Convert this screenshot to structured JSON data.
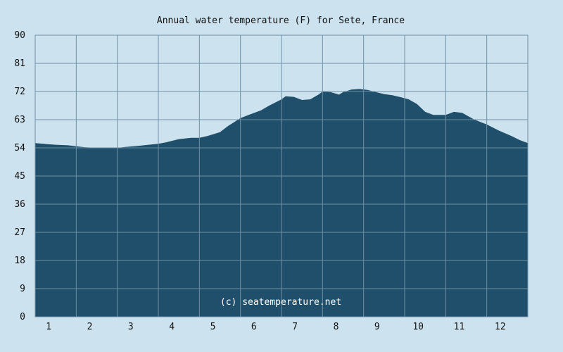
{
  "chart_data": {
    "type": "area",
    "title": "Annual water temperature (F) for Sete, France",
    "xlabel": "",
    "ylabel": "",
    "x_ticks": [
      "1",
      "2",
      "3",
      "4",
      "5",
      "6",
      "7",
      "8",
      "9",
      "10",
      "11",
      "12"
    ],
    "y_ticks": [
      "90",
      "81",
      "72",
      "63",
      "54",
      "45",
      "36",
      "27",
      "18",
      "9",
      "0"
    ],
    "ylim": [
      0,
      90
    ],
    "xlim": [
      0.5,
      12.5
    ],
    "grid": true,
    "series": [
      {
        "x": [
          0.5,
          0.8,
          1.0,
          1.3,
          1.5,
          1.7,
          2.0,
          2.3,
          2.5,
          2.7,
          3.0,
          3.2,
          3.5,
          3.7,
          4.0,
          4.3,
          4.5,
          4.7,
          5.0,
          5.2,
          5.5,
          5.7,
          6.0,
          6.2,
          6.5,
          6.6,
          6.8,
          7.0,
          7.2,
          7.4,
          7.5,
          7.7,
          7.9,
          8.0,
          8.2,
          8.4,
          8.6,
          8.8,
          9.0,
          9.2,
          9.4,
          9.6,
          9.8,
          10.0,
          10.2,
          10.5,
          10.7,
          10.9,
          11.2,
          11.5,
          11.8,
          12.1,
          12.3,
          12.5
        ],
        "values": [
          55.5,
          55.2,
          55.0,
          54.8,
          54.5,
          54.2,
          54.0,
          54.0,
          54.0,
          54.3,
          54.6,
          54.9,
          55.3,
          55.8,
          56.8,
          57.2,
          57.2,
          57.8,
          59.0,
          61.0,
          63.5,
          64.5,
          66.0,
          67.5,
          69.5,
          70.5,
          70.3,
          69.3,
          69.5,
          71.0,
          72.0,
          71.8,
          71.0,
          71.8,
          72.6,
          72.8,
          72.5,
          71.8,
          71.2,
          70.8,
          70.2,
          69.5,
          68.0,
          65.5,
          64.5,
          64.5,
          65.5,
          65.2,
          63.0,
          61.5,
          59.5,
          57.8,
          56.5,
          55.5
        ]
      }
    ],
    "colors": {
      "background": "#cce3ef",
      "area": "#1f4f6b",
      "grid": "#6f8fa3"
    },
    "watermark": "(c) seatemperature.net"
  }
}
